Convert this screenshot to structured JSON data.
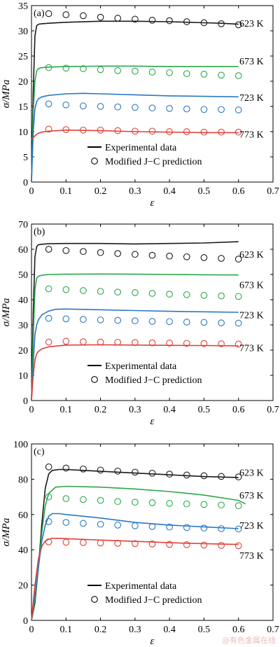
{
  "watermark": "@有色金属在线",
  "legend": {
    "experimental": "Experimental data",
    "predicted": "Modified J−C prediction"
  },
  "colors": {
    "623 K": "#1a1a1a",
    "673 K": "#2ca84a",
    "723 K": "#2b78c2",
    "773 K": "#e0413a"
  },
  "chart_data": [
    {
      "type": "line",
      "panel_label": "(a)",
      "xlabel": "ε",
      "ylabel": "σ/MPa",
      "xlim": [
        0,
        0.7
      ],
      "ylim": [
        0,
        35
      ],
      "xticks": [
        "0",
        "0.1",
        "0.2",
        "0.3",
        "0.4",
        "0.5",
        "0.6",
        "0.7"
      ],
      "yticks": [
        "0",
        "5",
        "10",
        "15",
        "20",
        "25",
        "30",
        "35"
      ],
      "grid": false,
      "legend_position": "bottom-center",
      "series": [
        {
          "name": "623 K",
          "label": "623 K",
          "label_y": 31.5,
          "experimental": {
            "x": [
              0,
              0.005,
              0.01,
              0.015,
              0.02,
              0.03,
              0.05,
              0.1,
              0.2,
              0.3,
              0.4,
              0.5,
              0.55,
              0.6
            ],
            "y": [
              0,
              18,
              29,
              31,
              31.3,
              31.4,
              31.5,
              31.7,
              31.9,
              31.9,
              31.8,
              31.6,
              31.5,
              31.3
            ]
          },
          "predicted": {
            "x": [
              0.05,
              0.1,
              0.15,
              0.2,
              0.25,
              0.3,
              0.35,
              0.4,
              0.45,
              0.5,
              0.55,
              0.6
            ],
            "y": [
              33.4,
              33.2,
              33.0,
              32.7,
              32.5,
              32.3,
              32.1,
              32.0,
              31.8,
              31.6,
              31.4,
              31.2
            ]
          }
        },
        {
          "name": "673 K",
          "label": "673 K",
          "label_y": 24,
          "experimental": {
            "x": [
              0,
              0.005,
              0.01,
              0.015,
              0.02,
              0.03,
              0.05,
              0.1,
              0.2,
              0.3,
              0.4,
              0.5,
              0.6
            ],
            "y": [
              0,
              14,
              20,
              22,
              22.5,
              22.7,
              22.8,
              22.9,
              23.0,
              23.0,
              22.9,
              22.9,
              22.9
            ]
          },
          "predicted": {
            "x": [
              0.05,
              0.1,
              0.15,
              0.2,
              0.25,
              0.3,
              0.35,
              0.4,
              0.45,
              0.5,
              0.55,
              0.6
            ],
            "y": [
              22.7,
              22.6,
              22.5,
              22.3,
              22.1,
              22.0,
              21.8,
              21.7,
              21.5,
              21.4,
              21.2,
              21.1
            ]
          }
        },
        {
          "name": "723 K",
          "label": "723 K",
          "label_y": 16.8,
          "experimental": {
            "x": [
              0,
              0.005,
              0.01,
              0.015,
              0.02,
              0.03,
              0.05,
              0.1,
              0.15,
              0.2,
              0.3,
              0.4,
              0.5,
              0.6
            ],
            "y": [
              0,
              10,
              14.5,
              16,
              16.5,
              16.9,
              17.2,
              17.5,
              17.6,
              17.5,
              17.3,
              17.1,
              17.0,
              16.9
            ]
          },
          "predicted": {
            "x": [
              0.05,
              0.1,
              0.15,
              0.2,
              0.25,
              0.3,
              0.35,
              0.4,
              0.45,
              0.5,
              0.55,
              0.6
            ],
            "y": [
              15.5,
              15.3,
              15.1,
              15.0,
              14.9,
              14.8,
              14.7,
              14.6,
              14.5,
              14.4,
              14.4,
              14.3
            ]
          }
        },
        {
          "name": "773 K",
          "label": "773 K",
          "label_y": 9.5,
          "experimental": {
            "x": [
              0,
              0.005,
              0.01,
              0.015,
              0.02,
              0.03,
              0.05,
              0.1,
              0.2,
              0.3,
              0.4,
              0.5,
              0.6
            ],
            "y": [
              8.5,
              8.8,
              9.2,
              9.5,
              9.7,
              9.9,
              10.1,
              10.3,
              10.2,
              10.0,
              9.9,
              9.8,
              9.8
            ]
          },
          "predicted": {
            "x": [
              0.05,
              0.1,
              0.15,
              0.2,
              0.25,
              0.3,
              0.35,
              0.4,
              0.45,
              0.5,
              0.55,
              0.6
            ],
            "y": [
              10.5,
              10.4,
              10.3,
              10.3,
              10.2,
              10.1,
              10.1,
              10.0,
              10.0,
              9.9,
              9.9,
              9.9
            ]
          }
        }
      ]
    },
    {
      "type": "line",
      "panel_label": "(b)",
      "xlabel": "ε",
      "ylabel": "σ/MPa",
      "xlim": [
        0,
        0.7
      ],
      "ylim": [
        0,
        70
      ],
      "xticks": [
        "0",
        "0.1",
        "0.2",
        "0.3",
        "0.4",
        "0.5",
        "0.6",
        "0.7"
      ],
      "yticks": [
        "0",
        "10",
        "20",
        "30",
        "40",
        "50",
        "60",
        "70"
      ],
      "grid": false,
      "legend_position": "bottom-center",
      "series": [
        {
          "name": "623 K",
          "label": "623 K",
          "label_y": 58,
          "experimental": {
            "x": [
              0,
              0.005,
              0.01,
              0.015,
              0.02,
              0.03,
              0.05,
              0.1,
              0.2,
              0.3,
              0.4,
              0.5,
              0.6
            ],
            "y": [
              0,
              35,
              57,
              61,
              61.8,
              62.0,
              62.2,
              62.3,
              62.3,
              62.1,
              62.3,
              62.5,
              63.0
            ]
          },
          "predicted": {
            "x": [
              0.05,
              0.1,
              0.15,
              0.2,
              0.25,
              0.3,
              0.35,
              0.4,
              0.45,
              0.5,
              0.55,
              0.6
            ],
            "y": [
              60.0,
              59.5,
              59.1,
              58.7,
              58.3,
              58.0,
              57.6,
              57.3,
              57.0,
              56.7,
              56.4,
              56.1
            ]
          }
        },
        {
          "name": "673 K",
          "label": "673 K",
          "label_y": 46,
          "experimental": {
            "x": [
              0,
              0.005,
              0.01,
              0.015,
              0.02,
              0.03,
              0.05,
              0.1,
              0.2,
              0.3,
              0.4,
              0.5,
              0.6
            ],
            "y": [
              0,
              25,
              44,
              48.5,
              49.3,
              49.7,
              50.0,
              50.1,
              50.2,
              50.1,
              50.0,
              49.9,
              49.8
            ]
          },
          "predicted": {
            "x": [
              0.05,
              0.1,
              0.15,
              0.2,
              0.25,
              0.3,
              0.35,
              0.4,
              0.45,
              0.5,
              0.55,
              0.6
            ],
            "y": [
              44.3,
              44.0,
              43.6,
              43.3,
              43.0,
              42.8,
              42.5,
              42.2,
              42.0,
              41.7,
              41.5,
              41.3
            ]
          }
        },
        {
          "name": "723 K",
          "label": "723 K",
          "label_y": 34,
          "experimental": {
            "x": [
              0,
              0.005,
              0.01,
              0.015,
              0.02,
              0.03,
              0.05,
              0.07,
              0.1,
              0.2,
              0.3,
              0.4,
              0.5,
              0.6
            ],
            "y": [
              0,
              15,
              26,
              30,
              32,
              34,
              35.5,
              36.2,
              36.3,
              36.0,
              35.7,
              35.4,
              35.2,
              35.0
            ]
          },
          "predicted": {
            "x": [
              0.05,
              0.1,
              0.15,
              0.2,
              0.25,
              0.3,
              0.35,
              0.4,
              0.45,
              0.5,
              0.55,
              0.6
            ],
            "y": [
              32.6,
              32.4,
              32.2,
              32.0,
              31.8,
              31.6,
              31.4,
              31.3,
              31.1,
              31.0,
              30.8,
              30.7
            ]
          }
        },
        {
          "name": "773 K",
          "label": "773 K",
          "label_y": 21,
          "experimental": {
            "x": [
              0,
              0.005,
              0.01,
              0.015,
              0.02,
              0.03,
              0.05,
              0.1,
              0.2,
              0.3,
              0.4,
              0.5,
              0.6
            ],
            "y": [
              0,
              10,
              16,
              18.5,
              19.5,
              20.5,
              21.3,
              22.0,
              22.1,
              22.0,
              21.9,
              21.8,
              21.7
            ]
          },
          "predicted": {
            "x": [
              0.05,
              0.1,
              0.15,
              0.2,
              0.25,
              0.3,
              0.35,
              0.4,
              0.45,
              0.5,
              0.55,
              0.6
            ],
            "y": [
              23.2,
              23.5,
              23.3,
              23.2,
              23.1,
              23.0,
              22.9,
              22.8,
              22.7,
              22.6,
              22.5,
              22.4
            ]
          }
        }
      ]
    },
    {
      "type": "line",
      "panel_label": "(c)",
      "xlabel": "ε",
      "ylabel": "σ/MPa",
      "xlim": [
        0,
        0.7
      ],
      "ylim": [
        0,
        100
      ],
      "xticks": [
        "0",
        "0.1",
        "0.2",
        "0.3",
        "0.4",
        "0.5",
        "0.6",
        "0.7"
      ],
      "yticks": [
        "0",
        "20",
        "40",
        "60",
        "80",
        "100"
      ],
      "grid": false,
      "legend_position": "bottom-center",
      "series": [
        {
          "name": "623 K",
          "label": "623 K",
          "label_y": 84,
          "experimental": {
            "x": [
              0,
              0.01,
              0.02,
              0.03,
              0.04,
              0.05,
              0.06,
              0.08,
              0.1,
              0.15,
              0.2,
              0.3,
              0.4,
              0.5,
              0.6
            ],
            "y": [
              0,
              10,
              30,
              55,
              75,
              83,
              85,
              85.5,
              85.5,
              85.0,
              84.5,
              83.5,
              82.5,
              81.5,
              81.0
            ]
          },
          "predicted": {
            "x": [
              0.05,
              0.1,
              0.15,
              0.2,
              0.25,
              0.3,
              0.35,
              0.4,
              0.45,
              0.5,
              0.55,
              0.6
            ],
            "y": [
              87,
              86.3,
              85.8,
              85.2,
              84.6,
              84.0,
              83.4,
              82.9,
              82.4,
              82.0,
              81.6,
              81.3
            ]
          }
        },
        {
          "name": "673 K",
          "label": "673 K",
          "label_y": 71,
          "experimental": {
            "x": [
              0,
              0.01,
              0.02,
              0.03,
              0.04,
              0.05,
              0.07,
              0.1,
              0.2,
              0.3,
              0.4,
              0.5,
              0.6,
              0.62
            ],
            "y": [
              0,
              12,
              30,
              50,
              65,
              72,
              75.5,
              76,
              75.5,
              74.5,
              73.0,
              71.0,
              68.0,
              66.0
            ]
          },
          "predicted": {
            "x": [
              0.05,
              0.1,
              0.15,
              0.2,
              0.25,
              0.3,
              0.35,
              0.4,
              0.45,
              0.5,
              0.55,
              0.6
            ],
            "y": [
              70,
              69.0,
              68.5,
              68.0,
              67.4,
              67.0,
              66.7,
              66.3,
              66.0,
              65.7,
              65.4,
              65.0
            ]
          }
        },
        {
          "name": "723 K",
          "label": "723 K",
          "label_y": 54,
          "experimental": {
            "x": [
              0,
              0.01,
              0.02,
              0.03,
              0.04,
              0.05,
              0.06,
              0.08,
              0.1,
              0.2,
              0.3,
              0.4,
              0.5,
              0.6
            ],
            "y": [
              0,
              15,
              30,
              45,
              54,
              59,
              60.5,
              60.5,
              60.0,
              58.0,
              55.5,
              54.0,
              53.0,
              52.0
            ]
          },
          "predicted": {
            "x": [
              0.05,
              0.1,
              0.15,
              0.2,
              0.25,
              0.3,
              0.35,
              0.4,
              0.45,
              0.5,
              0.55,
              0.6
            ],
            "y": [
              56,
              55.5,
              55.0,
              54.5,
              54.0,
              53.6,
              53.2,
              52.9,
              52.6,
              52.3,
              52.0,
              51.8
            ]
          }
        },
        {
          "name": "773 K",
          "label": "773 K",
          "label_y": 37,
          "experimental": {
            "x": [
              0,
              0.01,
              0.02,
              0.03,
              0.04,
              0.05,
              0.06,
              0.08,
              0.1,
              0.2,
              0.3,
              0.4,
              0.5,
              0.6
            ],
            "y": [
              0,
              20,
              35,
              42,
              45,
              46,
              46.5,
              46.5,
              46.3,
              45.5,
              44.8,
              44.0,
              43.5,
              43.0
            ]
          },
          "predicted": {
            "x": [
              0.05,
              0.1,
              0.15,
              0.2,
              0.25,
              0.3,
              0.35,
              0.4,
              0.45,
              0.5,
              0.55,
              0.6
            ],
            "y": [
              44.5,
              44.3,
              44.1,
              43.9,
              43.7,
              43.5,
              43.3,
              43.1,
              42.9,
              42.7,
              42.5,
              42.3
            ]
          }
        }
      ]
    }
  ]
}
